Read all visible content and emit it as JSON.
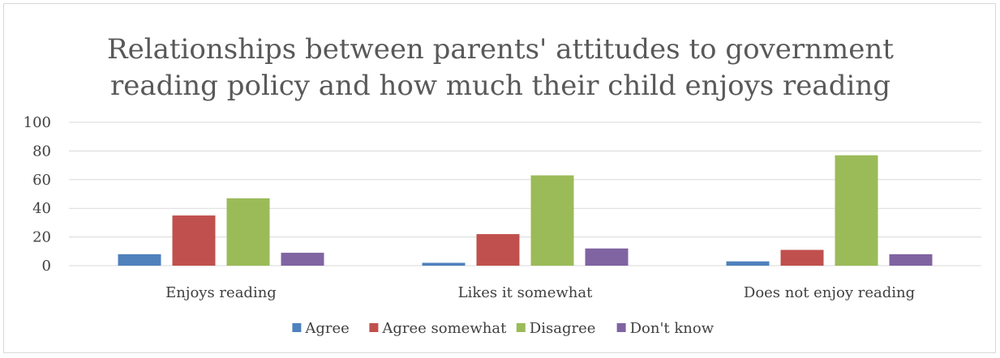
{
  "chart_data": {
    "type": "bar",
    "title": "Relationships between parents' attitudes to government reading policy and how much their child enjoys reading",
    "title_lines": [
      "Relationships between parents' attitudes to government",
      "reading policy and how much their child enjoys reading"
    ],
    "categories": [
      "Enjoys reading",
      "Likes it somewhat",
      "Does not enjoy reading"
    ],
    "series": [
      {
        "name": "Agree",
        "values": [
          8,
          2,
          3
        ],
        "color": "#4f81bd"
      },
      {
        "name": "Agree somewhat",
        "values": [
          35,
          22,
          11
        ],
        "color": "#c0504d"
      },
      {
        "name": "Disagree",
        "values": [
          47,
          63,
          77
        ],
        "color": "#9bbb59"
      },
      {
        "name": "Don't know",
        "values": [
          9,
          12,
          8
        ],
        "color": "#8064a2"
      }
    ],
    "ylim": [
      0,
      100
    ],
    "yticks": [
      "0",
      "20",
      "40",
      "60",
      "80",
      "100"
    ],
    "xlabel": "",
    "ylabel": "",
    "grid": true,
    "legend_position": "bottom"
  }
}
